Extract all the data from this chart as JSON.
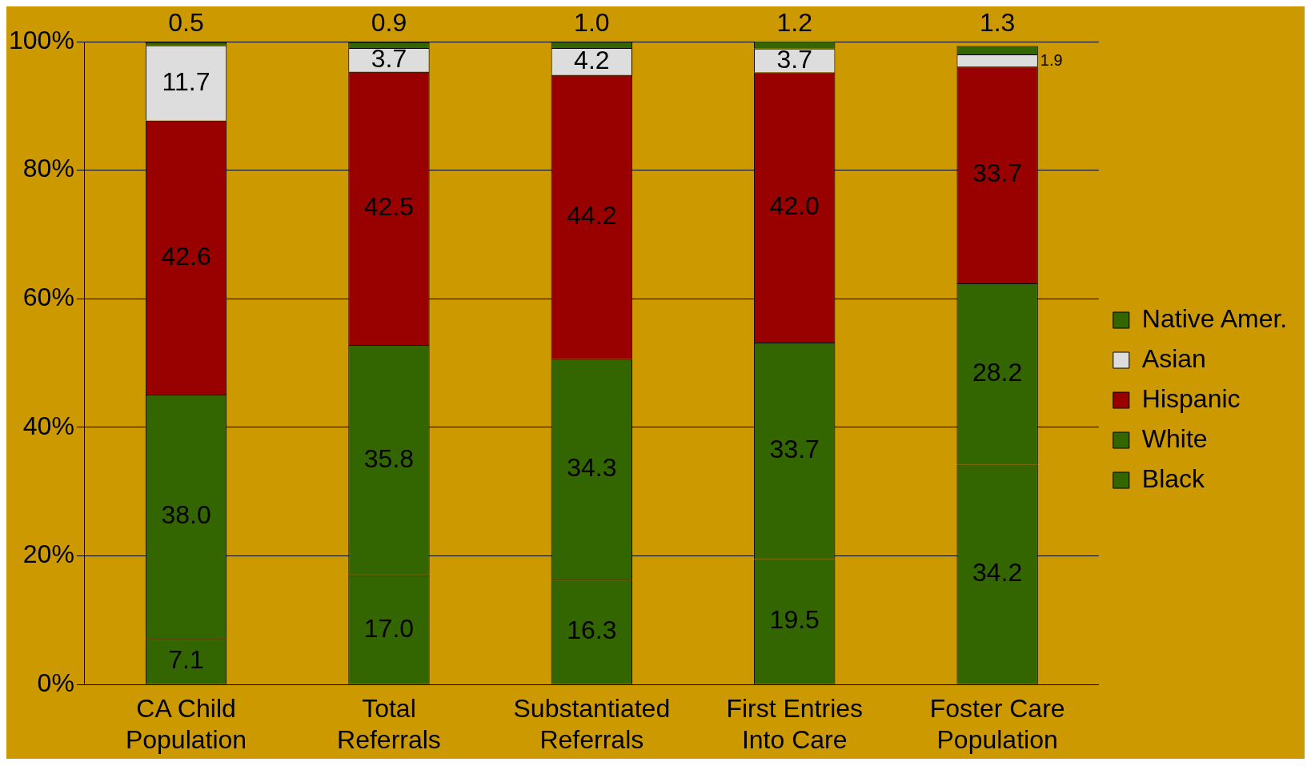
{
  "chart_data": {
    "type": "bar",
    "stacked": true,
    "categories": [
      "CA Child Population",
      "Total Referrals",
      "Substantiated Referrals",
      "First Entries Into Care",
      "Foster Care Population"
    ],
    "series": [
      {
        "name": "Black",
        "color": "#336600",
        "values": [
          7.1,
          17.0,
          16.3,
          19.5,
          34.2
        ],
        "value_labels": [
          "7.1",
          "17.0",
          "16.3",
          "19.5",
          "34.2"
        ]
      },
      {
        "name": "White",
        "color": "#336600",
        "values": [
          38.0,
          35.8,
          34.3,
          33.7,
          28.2
        ],
        "value_labels": [
          "38.0",
          "35.8",
          "34.3",
          "33.7",
          "28.2"
        ]
      },
      {
        "name": "Hispanic",
        "color": "#990000",
        "values": [
          42.6,
          42.5,
          44.2,
          42.0,
          33.7
        ],
        "value_labels": [
          "42.6",
          "42.5",
          "44.2",
          "42.0",
          "33.7"
        ]
      },
      {
        "name": "Asian",
        "color": "#dddddd",
        "values": [
          11.7,
          3.7,
          4.2,
          3.7,
          1.9
        ],
        "value_labels": [
          "11.7",
          "3.7",
          "4.2",
          "3.7",
          "1.9"
        ]
      },
      {
        "name": "Native Amer.",
        "color": "#336600",
        "values": [
          0.5,
          0.9,
          1.0,
          1.2,
          1.3
        ],
        "value_labels": [
          "0.5",
          "0.9",
          "1.0",
          "1.2",
          "1.3"
        ]
      }
    ],
    "ylim": [
      0,
      100
    ],
    "yticks": [
      {
        "value": 0,
        "label": "0%"
      },
      {
        "value": 20,
        "label": "20%"
      },
      {
        "value": 40,
        "label": "40%"
      },
      {
        "value": 60,
        "label": "60%"
      },
      {
        "value": 80,
        "label": "80%"
      },
      {
        "value": 100,
        "label": "100%"
      }
    ],
    "grid": "y",
    "legend": "right"
  }
}
